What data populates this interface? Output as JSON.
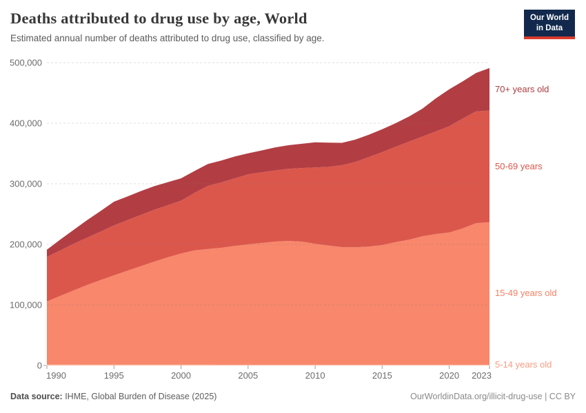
{
  "header": {
    "title": "Deaths attributed to drug use by age, World",
    "subtitle": "Estimated annual number of deaths attributed to drug use, classified by age.",
    "logo": {
      "line1": "Our World",
      "line2": "in Data",
      "bg_color": "#12294D",
      "bar_color": "#D93A2B"
    }
  },
  "chart_data": {
    "type": "area",
    "stacked": true,
    "title": "Deaths attributed to drug use by age, World",
    "xlabel": "",
    "ylabel": "",
    "ylim": [
      0,
      500000
    ],
    "grid": "horizontal dashed",
    "legend_position": "right-edge series labels",
    "x": [
      1990,
      1991,
      1992,
      1993,
      1994,
      1995,
      1996,
      1997,
      1998,
      1999,
      2000,
      2001,
      2002,
      2003,
      2004,
      2005,
      2006,
      2007,
      2008,
      2009,
      2010,
      2011,
      2012,
      2013,
      2014,
      2015,
      2016,
      2017,
      2018,
      2019,
      2020,
      2021,
      2022,
      2023
    ],
    "x_ticks": [
      1990,
      1995,
      2000,
      2005,
      2010,
      2015,
      2020,
      2023
    ],
    "y_ticks": [
      {
        "value": 0,
        "label": "0"
      },
      {
        "value": 100000,
        "label": "100,000"
      },
      {
        "value": 200000,
        "label": "200,000"
      },
      {
        "value": 300000,
        "label": "300,000"
      },
      {
        "value": 400000,
        "label": "400,000"
      },
      {
        "value": 500000,
        "label": "500,000"
      }
    ],
    "series": [
      {
        "name": "5-14 years old",
        "label": "5-14 years old",
        "color": "#FCBCA4",
        "label_color": "#F99C80",
        "values": [
          1600,
          1600,
          1600,
          1500,
          1500,
          1500,
          1500,
          1500,
          1400,
          1400,
          1400,
          1400,
          1400,
          1300,
          1300,
          1300,
          1300,
          1300,
          1300,
          1200,
          1200,
          1200,
          1200,
          1200,
          1200,
          1200,
          1200,
          1200,
          1200,
          1200,
          1200,
          1200,
          1200,
          1200
        ]
      },
      {
        "name": "15-49 years old",
        "label": "15-49 years old",
        "color": "#F8876B",
        "label_color": "#F87F63",
        "values": [
          104100,
          113400,
          122400,
          131500,
          139500,
          147400,
          155000,
          162500,
          170100,
          177100,
          183500,
          188600,
          191000,
          193000,
          196200,
          198700,
          201000,
          203200,
          204400,
          203300,
          199800,
          196900,
          194300,
          193900,
          195100,
          197700,
          202600,
          206400,
          212100,
          215800,
          218500,
          225300,
          233700,
          235500
        ]
      },
      {
        "name": "50-69 years",
        "label": "50-69 years",
        "color": "#DB574C",
        "label_color": "#DE5448",
        "values": [
          73500,
          75000,
          77000,
          78000,
          80000,
          82300,
          83500,
          84500,
          85500,
          86000,
          87100,
          95000,
          104200,
          108000,
          111500,
          115600,
          116700,
          117500,
          119000,
          121500,
          126000,
          129900,
          135200,
          140900,
          147700,
          153400,
          157200,
          161900,
          164700,
          169500,
          175300,
          181100,
          184800,
          184200
        ]
      },
      {
        "name": "70+ years old",
        "label": "70+ years old",
        "color": "#B23E44",
        "label_color": "#AE3B40",
        "values": [
          12100,
          18000,
          23000,
          29000,
          34000,
          39300,
          39000,
          39500,
          39000,
          38000,
          37000,
          36000,
          36000,
          36000,
          36000,
          34700,
          36000,
          38000,
          38900,
          40000,
          41500,
          40000,
          36900,
          37000,
          37000,
          37700,
          39000,
          41500,
          46000,
          54500,
          61000,
          61400,
          63300,
          70100
        ]
      }
    ]
  },
  "footer": {
    "source_prefix": "Data source:",
    "source_text": " IHME, Global Burden of Disease (2025)",
    "link_text": "OurWorldinData.org/illicit-drug-use | CC BY"
  },
  "colors": {
    "grid": "#787878",
    "axis_text": "#6b6b6b",
    "tick": "#9e9e9e",
    "title": "#383838",
    "subtitle": "#5a5a5a",
    "source": "#5c5c5c",
    "link": "#898989"
  }
}
